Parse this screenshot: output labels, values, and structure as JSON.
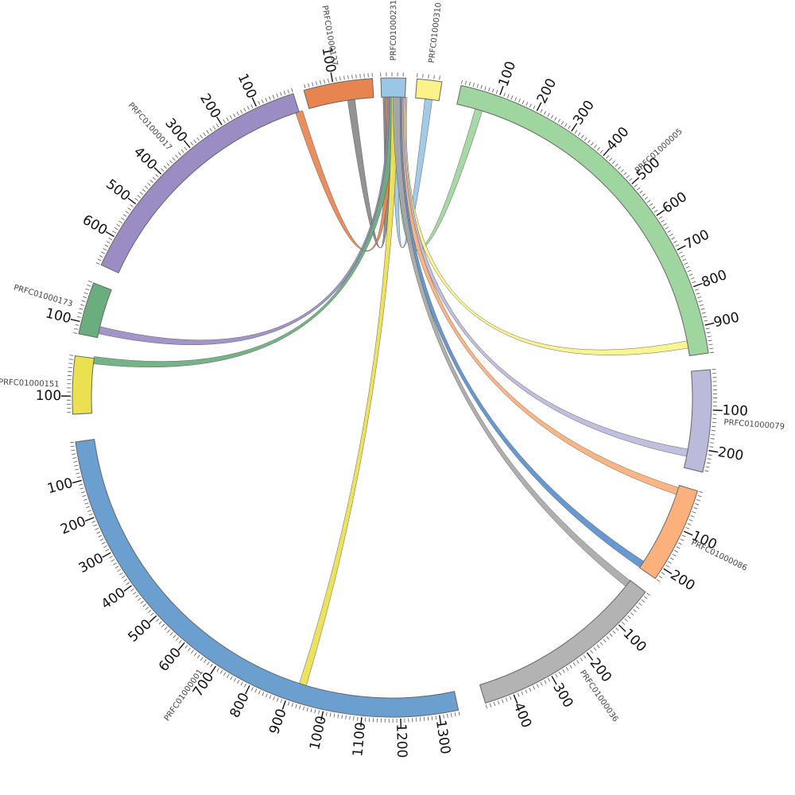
{
  "diagram": {
    "type": "chord",
    "segments": [
      {
        "id": "PRFC01000001",
        "label": "PRFC01000001",
        "length": 1350,
        "color": "#6a9fd0",
        "tick_labels": [
          "100",
          "200",
          "300",
          "400",
          "500",
          "600",
          "700",
          "800",
          "900",
          "1000",
          "1100",
          "1200",
          "1300"
        ]
      },
      {
        "id": "PRFC01000151",
        "label": "PRFC01000151",
        "length": 145,
        "color": "#ebe04f",
        "tick_labels": [
          "100"
        ]
      },
      {
        "id": "PRFC01000173",
        "label": "PRFC01000173",
        "length": 130,
        "color": "#6aad7e",
        "tick_labels": [
          "100"
        ]
      },
      {
        "id": "PRFC01000017",
        "label": "PRFC01000017",
        "length": 680,
        "color": "#9b8cc4",
        "tick_labels": [
          "100",
          "200",
          "300",
          "400",
          "500",
          "600"
        ]
      },
      {
        "id": "PRFC01000127",
        "label": "PRFC01000127",
        "length": 175,
        "color": "#e8844f",
        "tick_labels": [
          "100"
        ]
      },
      {
        "id": "PRFC01000231",
        "label": "PRFC01000231",
        "length": 45,
        "color": "#9bc6e4",
        "tick_labels": []
      },
      {
        "id": "PRFC01000310",
        "label": "PRFC01000310",
        "length": 45,
        "color": "#fbf38a",
        "tick_labels": []
      },
      {
        "id": "PRFC01000005",
        "label": "PRFC01000005",
        "length": 970,
        "color": "#9fd6a0",
        "tick_labels": [
          "100",
          "200",
          "300",
          "400",
          "500",
          "600",
          "700",
          "800",
          "900"
        ]
      },
      {
        "id": "PRFC01000079",
        "label": "PRFC01000079",
        "length": 255,
        "color": "#bbbadb",
        "tick_labels": [
          "100",
          "200"
        ]
      },
      {
        "id": "PRFC01000086",
        "label": "PRFC01000086",
        "length": 230,
        "color": "#fcb07c",
        "tick_labels": [
          "100",
          "200"
        ]
      },
      {
        "id": "PRFC01000036",
        "label": "PRFC01000036",
        "length": 470,
        "color": "#b3b3b3",
        "tick_labels": [
          "100",
          "200",
          "300",
          "400"
        ]
      }
    ],
    "links": [
      {
        "source": "PRFC01000127",
        "source_pos": 60,
        "target": "PRFC01000231",
        "target_pos": 10,
        "color": "#8a8a8a"
      },
      {
        "source": "PRFC01000231",
        "source_pos": 30,
        "target": "PRFC01000310",
        "target_pos": 25,
        "color": "#9bc6e4"
      },
      {
        "source": "PRFC01000005",
        "source_pos": 60,
        "target": "PRFC01000231",
        "target_pos": 38,
        "color": "#9fd6a0"
      },
      {
        "source": "PRFC01000017",
        "source_pos": 0,
        "target": "PRFC01000231",
        "target_pos": 14,
        "color": "#e8844f"
      },
      {
        "source": "PRFC01000173",
        "source_pos": 110,
        "target": "PRFC01000231",
        "target_pos": 18,
        "color": "#9b8cc4"
      },
      {
        "source": "PRFC01000151",
        "source_pos": 5,
        "target": "PRFC01000231",
        "target_pos": 22,
        "color": "#6aad7e"
      },
      {
        "source": "PRFC01000001",
        "source_pos": 930,
        "target": "PRFC01000231",
        "target_pos": 26,
        "color": "#ebe04f"
      },
      {
        "source": "PRFC01000005",
        "source_pos": 940,
        "target": "PRFC01000231",
        "target_pos": 42,
        "color": "#fbf38a"
      },
      {
        "source": "PRFC01000079",
        "source_pos": 215,
        "target": "PRFC01000231",
        "target_pos": 40,
        "color": "#bbbadb"
      },
      {
        "source": "PRFC01000086",
        "source_pos": 15,
        "target": "PRFC01000231",
        "target_pos": 36,
        "color": "#fcb07c"
      },
      {
        "source": "PRFC01000086",
        "source_pos": 220,
        "target": "PRFC01000231",
        "target_pos": 33,
        "color": "#5a8fcc"
      },
      {
        "source": "PRFC01000036",
        "source_pos": 10,
        "target": "PRFC01000231",
        "target_pos": 29,
        "color": "#a8a8a8"
      }
    ]
  }
}
